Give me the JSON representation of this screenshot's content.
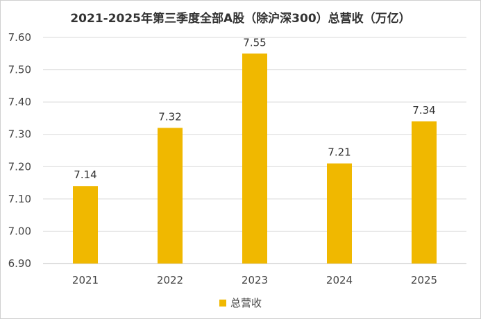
{
  "chart_data": {
    "type": "bar",
    "title": "2021-2025年第三季度全部A股（除沪深300）总营收（万亿）",
    "categories": [
      "2021",
      "2022",
      "2023",
      "2024",
      "2025"
    ],
    "series": [
      {
        "name": "总营收",
        "values": [
          7.14,
          7.32,
          7.55,
          7.21,
          7.34
        ],
        "labels": [
          "7.14",
          "7.32",
          "7.55",
          "7.21",
          "7.34"
        ],
        "color": "#F0B800"
      }
    ],
    "yticks": [
      "6.90",
      "7.00",
      "7.10",
      "7.20",
      "7.30",
      "7.40",
      "7.50",
      "7.60"
    ],
    "ylim": [
      6.9,
      7.6
    ],
    "xlabel": "",
    "ylabel": "",
    "grid": true,
    "legend_position": "bottom"
  },
  "colors": {
    "bar": "#F0B800",
    "grid": "#d9d9d9",
    "axis": "#bfbfbf"
  }
}
